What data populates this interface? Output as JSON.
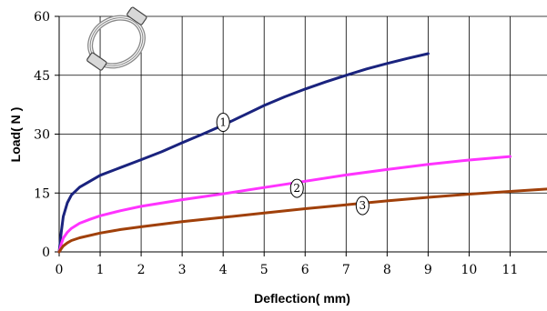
{
  "chart_data": {
    "type": "line",
    "title": "",
    "xlabel": "Deflection( mm)",
    "ylabel": "Load( N )",
    "xlim": [
      0,
      11.9
    ],
    "ylim": [
      0,
      60
    ],
    "xticks": [
      0,
      1,
      2,
      3,
      4,
      5,
      6,
      7,
      8,
      9,
      10,
      11
    ],
    "yticks": [
      0,
      15,
      30,
      45,
      60
    ],
    "grid": true,
    "legend": "none",
    "inset_icon": "ring-with-clips-icon",
    "series": [
      {
        "label": "1",
        "color": "#1a237e",
        "label_at": [
          4.0,
          33.0
        ],
        "x": [
          0,
          0.05,
          0.1,
          0.2,
          0.3,
          0.5,
          0.75,
          1,
          1.5,
          2,
          2.5,
          3,
          3.5,
          4,
          4.5,
          5,
          5.5,
          6,
          6.5,
          7,
          7.5,
          8,
          8.5,
          9
        ],
        "y": [
          0,
          5,
          9,
          12.5,
          14.5,
          16.5,
          18,
          19.5,
          21.5,
          23.5,
          25.5,
          27.8,
          30,
          32.3,
          34.8,
          37.3,
          39.5,
          41.5,
          43.3,
          45,
          46.6,
          48,
          49.3,
          50.5
        ]
      },
      {
        "label": "2",
        "color": "#ff33ff",
        "label_at": [
          5.8,
          16.2
        ],
        "x": [
          0,
          0.05,
          0.1,
          0.2,
          0.3,
          0.5,
          0.75,
          1,
          1.5,
          2,
          3,
          4,
          5,
          6,
          7,
          8,
          9,
          10,
          11
        ],
        "y": [
          0,
          2,
          3.5,
          5,
          6,
          7.3,
          8.3,
          9.2,
          10.5,
          11.6,
          13.3,
          14.8,
          16.4,
          18,
          19.6,
          21,
          22.3,
          23.4,
          24.3
        ]
      },
      {
        "label": "3",
        "color": "#a0400a",
        "label_at": [
          7.4,
          11.8
        ],
        "x": [
          0,
          0.05,
          0.1,
          0.2,
          0.3,
          0.5,
          1,
          1.5,
          2,
          3,
          4,
          5,
          6,
          7,
          8,
          9,
          10,
          11,
          11.9
        ],
        "y": [
          0,
          0.8,
          1.5,
          2.3,
          2.9,
          3.6,
          4.8,
          5.7,
          6.4,
          7.7,
          8.8,
          9.9,
          11,
          12,
          13,
          13.9,
          14.7,
          15.4,
          16
        ]
      }
    ]
  }
}
